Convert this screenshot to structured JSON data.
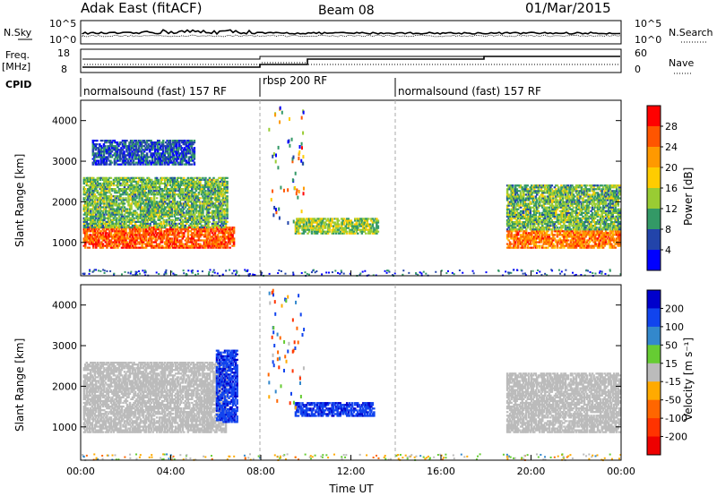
{
  "header": {
    "title": "Adak East (fitACF)",
    "beam": "Beam 08",
    "date": "01/Mar/2015"
  },
  "strips": {
    "nsky_label": "N.Sky",
    "nsearch_label": "N.Search",
    "noise_ticks_left": [
      "10^5",
      "10^0"
    ],
    "noise_ticks_right": [
      "10^5",
      "10^0"
    ],
    "freq_label": "Freq.",
    "freq_unit": "[MHz]",
    "freq_ticks": [
      "18",
      "8"
    ],
    "nave_label": "Nave",
    "nave_ticks": [
      "60",
      "0"
    ],
    "cpid_label": "CPID",
    "cpid_segments": [
      {
        "start": 0,
        "end": 8,
        "label": "normalsound (fast) 157 RF"
      },
      {
        "start": 8,
        "end": 14,
        "label": "rbsp 200 RF"
      },
      {
        "start": 14,
        "end": 24,
        "label": "normalsound (fast) 157 RF"
      }
    ]
  },
  "chart_data": [
    {
      "type": "heatmap",
      "panel": "power",
      "ylabel": "Slant Range [km]",
      "yticks": [
        1000,
        2000,
        3000,
        4000
      ],
      "ylim": [
        180,
        4500
      ],
      "xlim": [
        0,
        24
      ],
      "colorbar": {
        "label": "Power [dB]",
        "ticks": [
          28,
          24,
          20,
          16,
          12,
          8,
          4
        ],
        "colors": [
          "#ff0000",
          "#ff5500",
          "#ff9900",
          "#ffcc00",
          "#99cc33",
          "#339966",
          "#2244aa",
          "#0000ff"
        ]
      },
      "echo_regions": [
        {
          "t0": 0.1,
          "t1": 6.8,
          "r0": 850,
          "r1": 1350,
          "level": 26
        },
        {
          "t0": 0.1,
          "t1": 6.5,
          "r0": 1350,
          "r1": 2600,
          "level": 12
        },
        {
          "t0": 0.5,
          "t1": 5.0,
          "r0": 2900,
          "r1": 3500,
          "level": 6
        },
        {
          "t0": 9.5,
          "t1": 13.2,
          "r0": 1200,
          "r1": 1600,
          "level": 14
        },
        {
          "t0": 18.9,
          "t1": 23.9,
          "r0": 850,
          "r1": 1300,
          "level": 24
        },
        {
          "t0": 18.9,
          "t1": 23.9,
          "r0": 1300,
          "r1": 2400,
          "level": 12
        }
      ]
    },
    {
      "type": "heatmap",
      "panel": "velocity",
      "ylabel": "Slant Range [km]",
      "xlabel": "Time UT",
      "yticks": [
        1000,
        2000,
        3000,
        4000
      ],
      "xticks": [
        "00:00",
        "04:00",
        "08:00",
        "12:00",
        "16:00",
        "20:00",
        "00:00"
      ],
      "xtick_values": [
        0,
        4,
        8,
        12,
        16,
        20,
        24
      ],
      "ylim": [
        180,
        4500
      ],
      "xlim": [
        0,
        24
      ],
      "colorbar": {
        "label": "Velocity [m s⁻¹]",
        "ticks": [
          200,
          100,
          50,
          15,
          -15,
          -50,
          -100,
          -200
        ],
        "colors": [
          "#0000cc",
          "#1144ee",
          "#3388cc",
          "#66cc33",
          "#bbbbbb",
          "#ffaa00",
          "#ff6600",
          "#ff3300",
          "#ee0000"
        ]
      },
      "echo_regions": [
        {
          "t0": 0.1,
          "t1": 6.5,
          "r0": 850,
          "r1": 2600,
          "vel": 0
        },
        {
          "t0": 6.0,
          "t1": 6.9,
          "r0": 1100,
          "r1": 2900,
          "vel": 180
        },
        {
          "t0": 9.5,
          "t1": 13.0,
          "r0": 1250,
          "r1": 1600,
          "vel": 180
        },
        {
          "t0": 18.9,
          "t1": 23.9,
          "r0": 850,
          "r1": 2300,
          "vel": 0
        }
      ]
    }
  ]
}
